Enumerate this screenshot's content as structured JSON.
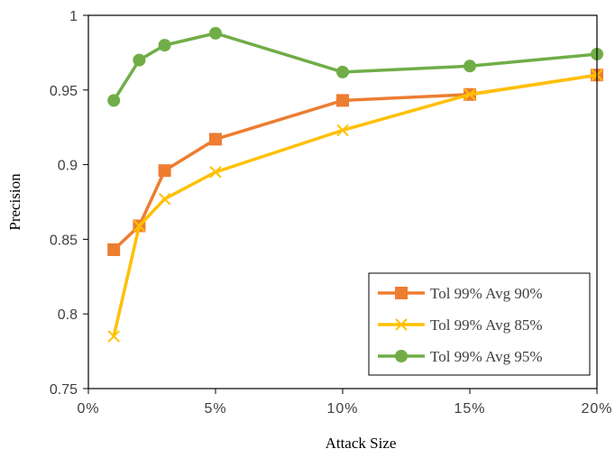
{
  "chart_data": {
    "type": "line",
    "xlabel": "Attack Size",
    "ylabel": "Precision",
    "xlim": [
      0,
      20
    ],
    "ylim": [
      0.75,
      1
    ],
    "x_ticks": [
      0,
      5,
      10,
      15,
      20
    ],
    "x_tick_labels": [
      "0%",
      "5%",
      "10%",
      "15%",
      "20%"
    ],
    "y_ticks": [
      0.75,
      0.8,
      0.85,
      0.9,
      0.95,
      1
    ],
    "y_tick_labels": [
      "0.75",
      "0.8",
      "0.85",
      "0.9",
      "0.95",
      "1"
    ],
    "grid": false,
    "legend_position": "bottom-right",
    "series": [
      {
        "name": "Tol 99% Avg 90%",
        "color": "#ED7D31",
        "marker": "square",
        "x": [
          1,
          2,
          3,
          5,
          10,
          15,
          20
        ],
        "y": [
          0.843,
          0.859,
          0.896,
          0.917,
          0.943,
          0.947,
          0.96
        ]
      },
      {
        "name": "Tol 99% Avg 85%",
        "color": "#FFC000",
        "marker": "x",
        "x": [
          1,
          2,
          3,
          5,
          10,
          15,
          20
        ],
        "y": [
          0.785,
          0.859,
          0.877,
          0.895,
          0.923,
          0.947,
          0.96
        ]
      },
      {
        "name": "Tol 99% Avg 95%",
        "color": "#70AD47",
        "marker": "circle",
        "x": [
          1,
          2,
          3,
          5,
          10,
          15,
          20
        ],
        "y": [
          0.943,
          0.97,
          0.98,
          0.988,
          0.962,
          0.966,
          0.974
        ]
      }
    ]
  }
}
